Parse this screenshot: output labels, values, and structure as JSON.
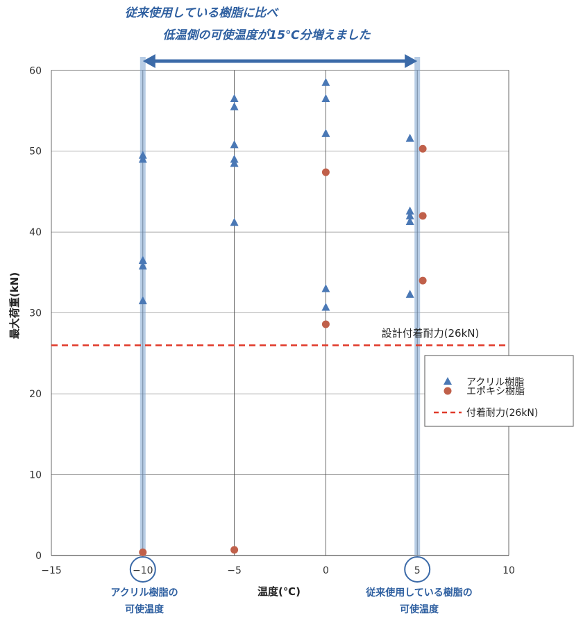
{
  "chart_data": {
    "type": "scatter",
    "title": "",
    "xlabel": "温度(℃)",
    "ylabel": "最大荷重(kN)",
    "xlim": [
      -15,
      10
    ],
    "ylim": [
      0,
      62
    ],
    "x_ticks": [
      -15,
      -10,
      -5,
      0,
      5,
      10
    ],
    "y_ticks": [
      0,
      10,
      20,
      30,
      40,
      50,
      60
    ],
    "grid": true,
    "legend_position": "right",
    "series": [
      {
        "name": "アクリル樹脂",
        "marker": "triangle",
        "color": "#4a78b5",
        "points": [
          {
            "x": -10,
            "y": 49.5
          },
          {
            "x": -10,
            "y": 49.0
          },
          {
            "x": -10,
            "y": 36.5
          },
          {
            "x": -10,
            "y": 35.8
          },
          {
            "x": -10,
            "y": 31.5
          },
          {
            "x": -5,
            "y": 56.5
          },
          {
            "x": -5,
            "y": 55.5
          },
          {
            "x": -5,
            "y": 50.8
          },
          {
            "x": -5,
            "y": 49.0
          },
          {
            "x": -5,
            "y": 48.5
          },
          {
            "x": -5,
            "y": 41.2
          },
          {
            "x": 0,
            "y": 58.5
          },
          {
            "x": 0,
            "y": 56.5
          },
          {
            "x": 0,
            "y": 52.2
          },
          {
            "x": 0,
            "y": 33.0
          },
          {
            "x": 0,
            "y": 30.7
          },
          {
            "x": 4.6,
            "y": 51.6
          },
          {
            "x": 4.6,
            "y": 42.6
          },
          {
            "x": 4.6,
            "y": 42.0
          },
          {
            "x": 4.6,
            "y": 41.3
          },
          {
            "x": 4.6,
            "y": 32.3
          }
        ]
      },
      {
        "name": "エポキシ樹脂",
        "marker": "circle",
        "color": "#c0604a",
        "points": [
          {
            "x": -10,
            "y": 0.4
          },
          {
            "x": -5,
            "y": 0.7
          },
          {
            "x": 0,
            "y": 47.4
          },
          {
            "x": 0,
            "y": 28.6
          },
          {
            "x": 5.3,
            "y": 50.3
          },
          {
            "x": 5.3,
            "y": 42.0
          },
          {
            "x": 5.3,
            "y": 34.0
          }
        ]
      }
    ],
    "reference_line": {
      "name": "付着耐力(26kN)",
      "y": 26,
      "style": "dashed",
      "color": "#e03a2a",
      "label": "設計付着耐力(26kN)"
    },
    "annotations": {
      "top_line1": "従来使用している樹脂に比べ",
      "top_line2": "低温側の可使温度が15℃分増えました",
      "left_callout_line1": "アクリル樹脂の",
      "left_callout_line2": "可使温度",
      "right_callout_line1": "従来使用している樹脂の",
      "right_callout_line2": "可使温度",
      "left_marker_x": -10,
      "right_marker_x": 5
    }
  }
}
